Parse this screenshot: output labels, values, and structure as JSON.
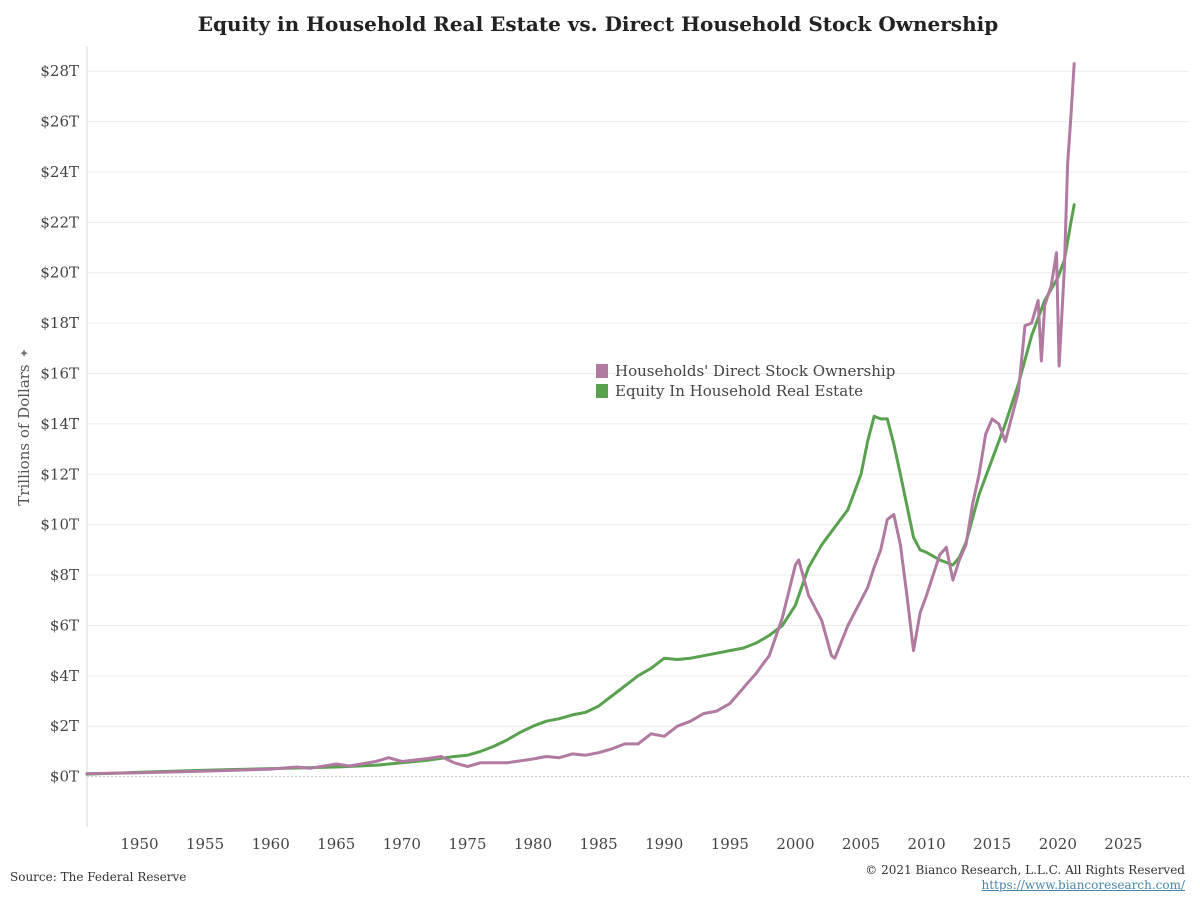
{
  "chart_data": {
    "type": "line",
    "title": "Equity in Household Real Estate vs. Direct Household Stock Ownership",
    "ylabel": "Trillions of Dollars",
    "ylabel_icon": "pin-icon",
    "xlabel": "",
    "xlim": [
      1946,
      2030
    ],
    "ylim": [
      -2,
      29
    ],
    "y_ticks": [
      0,
      2,
      4,
      6,
      8,
      10,
      12,
      14,
      16,
      18,
      20,
      22,
      24,
      26,
      28
    ],
    "y_tick_labels": [
      "$0T",
      "$2T",
      "$4T",
      "$6T",
      "$8T",
      "$10T",
      "$12T",
      "$14T",
      "$16T",
      "$18T",
      "$20T",
      "$22T",
      "$24T",
      "$26T",
      "$28T"
    ],
    "x_ticks": [
      1950,
      1955,
      1960,
      1965,
      1970,
      1975,
      1980,
      1985,
      1990,
      1995,
      2000,
      2005,
      2010,
      2015,
      2020,
      2025
    ],
    "x_tick_labels": [
      "1950",
      "1955",
      "1960",
      "1965",
      "1970",
      "1975",
      "1980",
      "1985",
      "1990",
      "1995",
      "2000",
      "2005",
      "2010",
      "2015",
      "2020",
      "2025"
    ],
    "grid": "horizontal",
    "legend_position": "center",
    "series": [
      {
        "name": "Households' Direct Stock Ownership",
        "color": "#b07aa1",
        "x": [
          1946,
          1950,
          1955,
          1960,
          1962,
          1963,
          1965,
          1966,
          1968,
          1969,
          1970,
          1972,
          1973,
          1974,
          1975,
          1976,
          1978,
          1980,
          1981,
          1982,
          1983,
          1984,
          1985,
          1986,
          1987,
          1988,
          1989,
          1990,
          1991,
          1992,
          1993,
          1994,
          1995,
          1996,
          1997,
          1998,
          1999,
          2000,
          2000.25,
          2001,
          2002,
          2002.75,
          2003,
          2004,
          2005,
          2005.5,
          2006,
          2006.5,
          2007,
          2007.5,
          2008,
          2008.5,
          2009,
          2009.5,
          2010,
          2011,
          2011.5,
          2012,
          2012.5,
          2013,
          2013.5,
          2014,
          2014.5,
          2015,
          2015.5,
          2016,
          2017,
          2017.5,
          2018,
          2018.5,
          2018.75,
          2019,
          2019.5,
          2019.9,
          2020.1,
          2020.5,
          2020.75,
          2021,
          2021.25
        ],
        "values": [
          0.12,
          0.15,
          0.22,
          0.3,
          0.38,
          0.33,
          0.5,
          0.42,
          0.6,
          0.75,
          0.6,
          0.72,
          0.8,
          0.55,
          0.4,
          0.55,
          0.55,
          0.7,
          0.8,
          0.75,
          0.9,
          0.85,
          0.95,
          1.1,
          1.3,
          1.3,
          1.7,
          1.6,
          2.0,
          2.2,
          2.5,
          2.6,
          2.9,
          3.5,
          4.1,
          4.8,
          6.3,
          8.4,
          8.6,
          7.2,
          6.2,
          4.8,
          4.7,
          6.0,
          7.0,
          7.5,
          8.3,
          9.0,
          10.2,
          10.4,
          9.2,
          7.2,
          5.0,
          6.5,
          7.2,
          8.8,
          9.1,
          7.8,
          8.6,
          9.2,
          10.8,
          12.0,
          13.6,
          14.2,
          14.0,
          13.3,
          15.3,
          17.9,
          18.0,
          18.9,
          16.5,
          18.7,
          19.5,
          20.8,
          16.3,
          20.2,
          24.3,
          26.2,
          28.3
        ]
      },
      {
        "name": "Equity In Household Real Estate",
        "color": "#59a14f",
        "x": [
          1946,
          1950,
          1955,
          1960,
          1965,
          1968,
          1970,
          1972,
          1974,
          1975,
          1976,
          1977,
          1978,
          1979,
          1980,
          1981,
          1982,
          1983,
          1984,
          1985,
          1986,
          1987,
          1988,
          1989,
          1990,
          1991,
          1992,
          1993,
          1994,
          1995,
          1996,
          1997,
          1998,
          1999,
          2000,
          2001,
          2002,
          2003,
          2004,
          2005,
          2005.5,
          2006,
          2006.5,
          2007,
          2007.5,
          2008,
          2009,
          2009.5,
          2010,
          2011,
          2012,
          2012.5,
          2013,
          2014,
          2015,
          2016,
          2017,
          2018,
          2018.5,
          2019,
          2020,
          2020.5,
          2021,
          2021.25
        ],
        "values": [
          0.1,
          0.17,
          0.25,
          0.32,
          0.38,
          0.45,
          0.55,
          0.65,
          0.8,
          0.85,
          1.0,
          1.2,
          1.45,
          1.75,
          2.0,
          2.2,
          2.3,
          2.45,
          2.55,
          2.8,
          3.2,
          3.6,
          4.0,
          4.3,
          4.7,
          4.65,
          4.7,
          4.8,
          4.9,
          5.0,
          5.1,
          5.3,
          5.6,
          6.0,
          6.8,
          8.3,
          9.2,
          9.9,
          10.6,
          12.0,
          13.3,
          14.3,
          14.2,
          14.2,
          13.2,
          12.0,
          9.5,
          9.0,
          8.9,
          8.6,
          8.4,
          8.7,
          9.3,
          11.2,
          12.6,
          14.0,
          15.6,
          17.5,
          18.2,
          18.9,
          19.8,
          20.5,
          22.0,
          22.7
        ]
      }
    ]
  },
  "footer": {
    "source": "Source: The Federal Reserve",
    "copyright": "© 2021 Bianco Research, L.L.C. All Rights Reserved",
    "url": "https://www.biancoresearch.com/"
  }
}
